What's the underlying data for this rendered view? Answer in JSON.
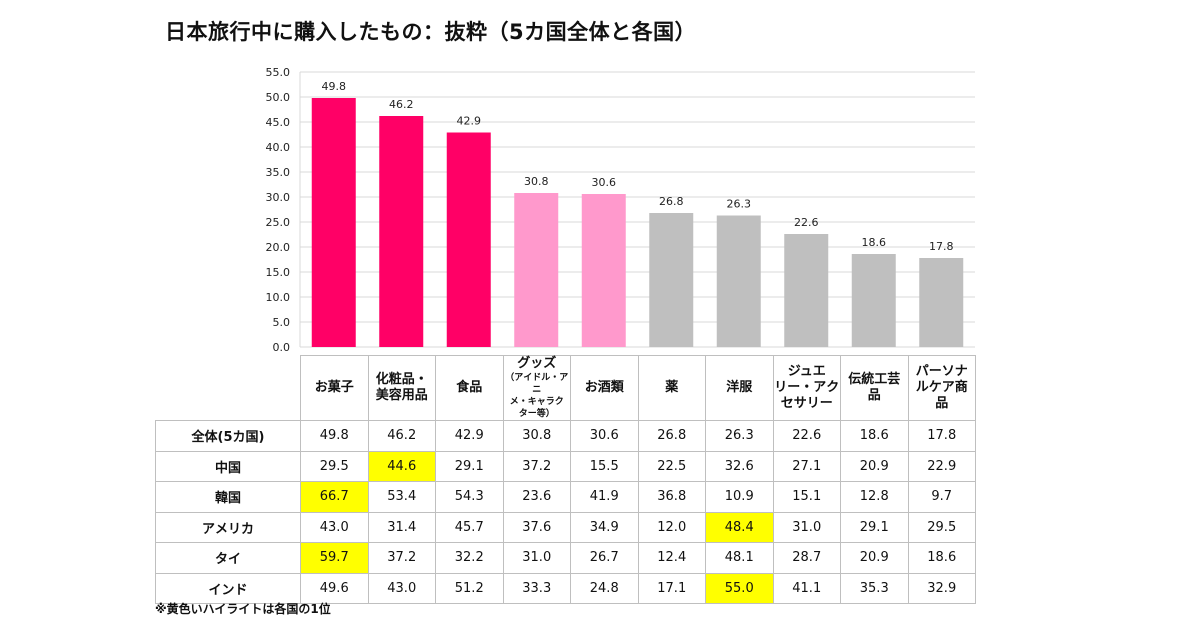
{
  "title": "日本旅行中に購入したもの：抜粋（5カ国全体と各国）",
  "note": "※黄色いハイライトは各国の1位",
  "colors": {
    "top3": "#FF0066",
    "mid": "#FF99CC",
    "rest": "#BFBFBF",
    "highlight": "#FFFF00"
  },
  "chart_data": {
    "type": "bar",
    "categories": [
      "お菓子",
      "化粧品・美容用品",
      "食品",
      "グッズ（アイドル・アニメ・キャラクター等）",
      "お酒類",
      "薬",
      "洋服",
      "ジュエリー・アクセサリー",
      "伝統工芸品",
      "パーソナルケア商品"
    ],
    "values": [
      49.8,
      46.2,
      42.9,
      30.8,
      30.6,
      26.8,
      26.3,
      22.6,
      18.6,
      17.8
    ],
    "data_labels": [
      "49.8",
      "46.2",
      "42.9",
      "30.8",
      "30.6",
      "26.8",
      "26.3",
      "22.6",
      "18.6",
      "17.8"
    ],
    "bar_colors": [
      "#FF0066",
      "#FF0066",
      "#FF0066",
      "#FF99CC",
      "#FF99CC",
      "#BFBFBF",
      "#BFBFBF",
      "#BFBFBF",
      "#BFBFBF",
      "#BFBFBF"
    ],
    "ylim": [
      0,
      55
    ],
    "yticks": [
      "0.0",
      "5.0",
      "10.0",
      "15.0",
      "20.0",
      "25.0",
      "30.0",
      "35.0",
      "40.0",
      "45.0",
      "50.0",
      "55.0"
    ],
    "grid": true
  },
  "table": {
    "headers": [
      {
        "lines": [
          "お菓子"
        ]
      },
      {
        "lines": [
          "化粧品・",
          "美容用品"
        ]
      },
      {
        "lines": [
          "食品"
        ]
      },
      {
        "lines": [
          "グッズ"
        ],
        "sub": [
          "（アイドル・アニ",
          "メ・キャラク",
          "ター等）"
        ]
      },
      {
        "lines": [
          "お酒類"
        ]
      },
      {
        "lines": [
          "薬"
        ]
      },
      {
        "lines": [
          "洋服"
        ]
      },
      {
        "lines": [
          "ジュエ",
          "リー・アク",
          "セサリー"
        ]
      },
      {
        "lines": [
          "伝統工芸",
          "品"
        ]
      },
      {
        "lines": [
          "パーソナ",
          "ルケア商",
          "品"
        ]
      }
    ],
    "rows": [
      {
        "label": "全体(5カ国)",
        "values": [
          "49.8",
          "46.2",
          "42.9",
          "30.8",
          "30.6",
          "26.8",
          "26.3",
          "22.6",
          "18.6",
          "17.8"
        ],
        "highlight": -1
      },
      {
        "label": "中国",
        "values": [
          "29.5",
          "44.6",
          "29.1",
          "37.2",
          "15.5",
          "22.5",
          "32.6",
          "27.1",
          "20.9",
          "22.9"
        ],
        "highlight": 1
      },
      {
        "label": "韓国",
        "values": [
          "66.7",
          "53.4",
          "54.3",
          "23.6",
          "41.9",
          "36.8",
          "10.9",
          "15.1",
          "12.8",
          "9.7"
        ],
        "highlight": 0
      },
      {
        "label": "アメリカ",
        "values": [
          "43.0",
          "31.4",
          "45.7",
          "37.6",
          "34.9",
          "12.0",
          "48.4",
          "31.0",
          "29.1",
          "29.5"
        ],
        "highlight": 6
      },
      {
        "label": "タイ",
        "values": [
          "59.7",
          "37.2",
          "32.2",
          "31.0",
          "26.7",
          "12.4",
          "48.1",
          "28.7",
          "20.9",
          "18.6"
        ],
        "highlight": 0
      },
      {
        "label": "インド",
        "values": [
          "49.6",
          "43.0",
          "51.2",
          "33.3",
          "24.8",
          "17.1",
          "55.0",
          "41.1",
          "35.3",
          "32.9"
        ],
        "highlight": 6
      }
    ]
  }
}
